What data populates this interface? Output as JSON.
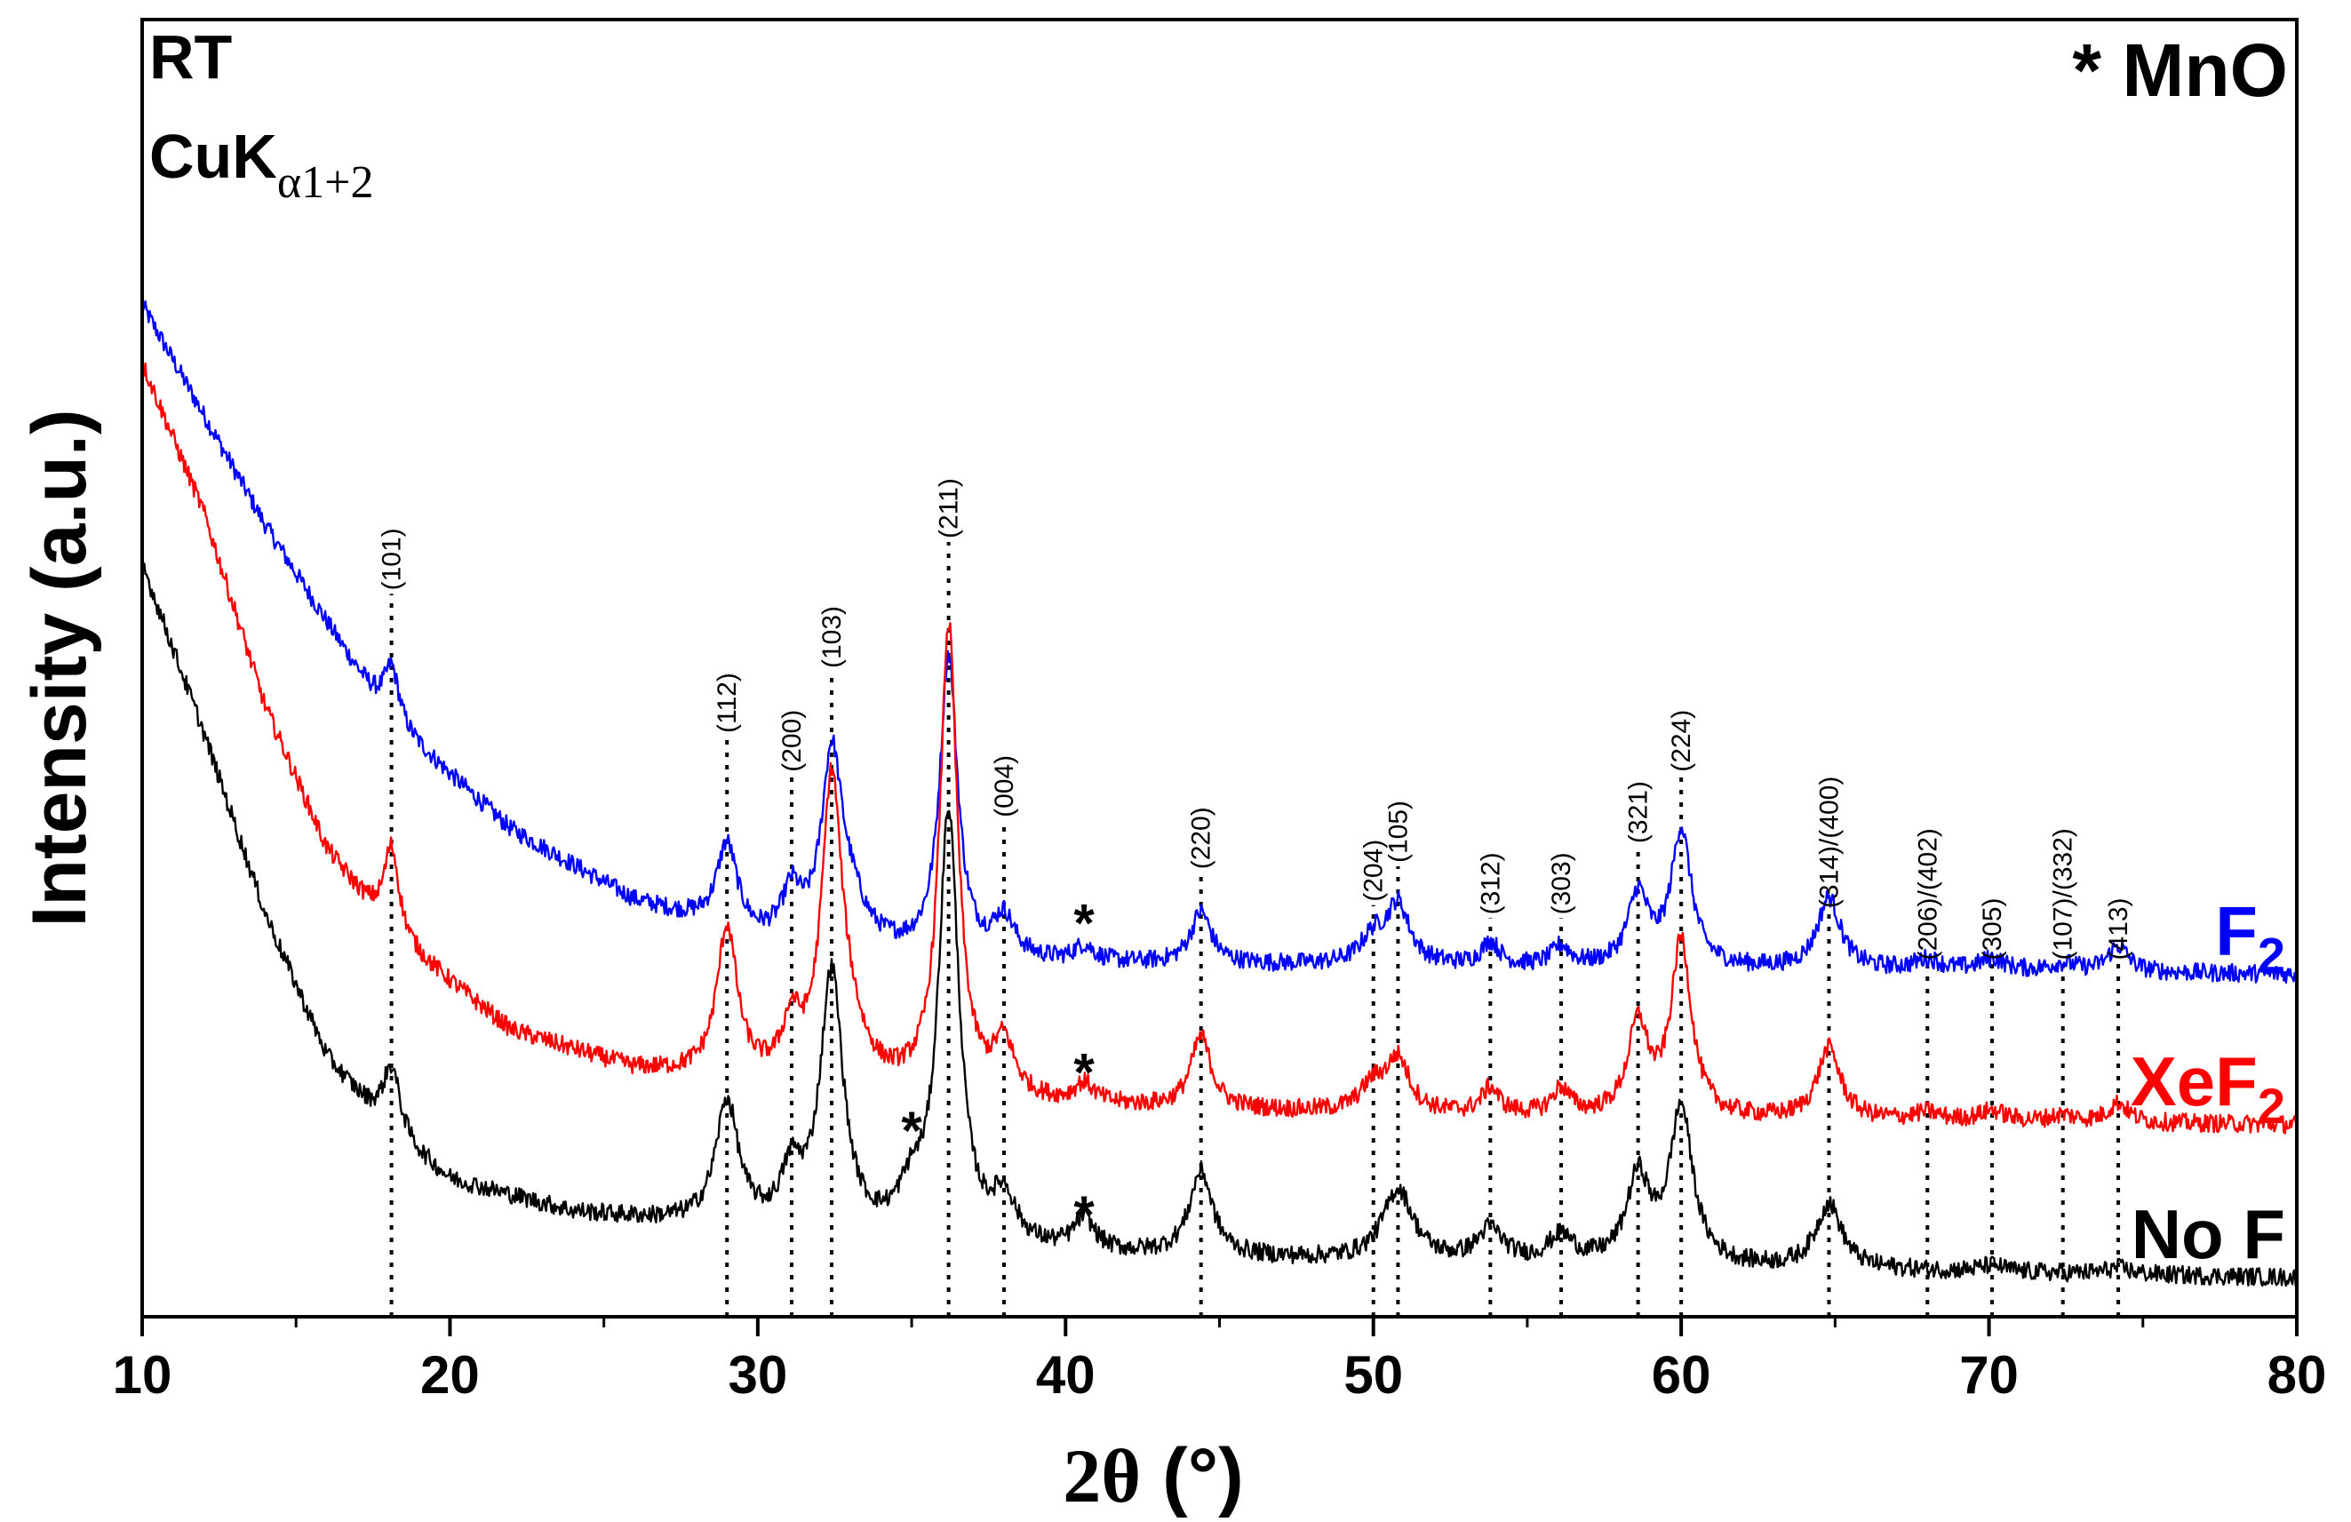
{
  "chart_data": {
    "type": "line",
    "title": "",
    "xlabel_main": "2θ",
    "xlabel_unit": "(°)",
    "ylabel": "Intensity (a.u.)",
    "xlim": [
      10,
      80
    ],
    "ylim": [
      0,
      100
    ],
    "x_ticks": [
      10,
      20,
      30,
      40,
      50,
      60,
      70,
      80
    ],
    "annotations": {
      "rt": "RT",
      "radiation": "CuK",
      "radiation_sub": "α1+2",
      "mno_legend": "* MnO"
    },
    "series": [
      {
        "name": "F",
        "name_sub": "2",
        "color": "#0000ff",
        "baseline": 27,
        "bg": [
          [
            10,
            78.0
          ],
          [
            14,
            61.0
          ],
          [
            18,
            46.0
          ],
          [
            22,
            37.5
          ],
          [
            26,
            32.0
          ],
          [
            30,
            29.0
          ],
          [
            35,
            27.8
          ],
          [
            40,
            27.2
          ],
          [
            50,
            27.0
          ],
          [
            60,
            26.8
          ],
          [
            70,
            26.6
          ],
          [
            80,
            26.4
          ]
        ],
        "peaks": [
          [
            18.1,
            4.5,
            0.3
          ],
          [
            29.0,
            6.5,
            0.4
          ],
          [
            31.1,
            3.5,
            0.35
          ],
          [
            32.4,
            14.0,
            0.4
          ],
          [
            33.0,
            3.0,
            0.6
          ],
          [
            36.2,
            23.0,
            0.35
          ],
          [
            38.0,
            3.0,
            0.4
          ],
          [
            40.6,
            1.2,
            0.4
          ],
          [
            44.4,
            4.0,
            0.4
          ],
          [
            50.0,
            2.0,
            0.5
          ],
          [
            50.8,
            4.5,
            0.45
          ],
          [
            53.8,
            1.8,
            0.35
          ],
          [
            56.1,
            1.5,
            0.35
          ],
          [
            58.6,
            5.5,
            0.4
          ],
          [
            60.0,
            10.5,
            0.4
          ],
          [
            64.8,
            5.5,
            0.45
          ],
          [
            68.0,
            0.8,
            0.5
          ],
          [
            70.1,
            0.9,
            0.5
          ],
          [
            72.4,
            0.6,
            0.5
          ],
          [
            74.2,
            2.0,
            0.4
          ]
        ]
      },
      {
        "name": "XeF",
        "name_sub": "2",
        "color": "#ff0000",
        "baseline": 14,
        "bg": [
          [
            10,
            73.5
          ],
          [
            12,
            62.0
          ],
          [
            14,
            47.0
          ],
          [
            16,
            36.0
          ],
          [
            18,
            29.5
          ],
          [
            22,
            22.0
          ],
          [
            26,
            19.0
          ],
          [
            30,
            18.0
          ],
          [
            40,
            16.2
          ],
          [
            50,
            15.6
          ],
          [
            60,
            15.2
          ],
          [
            70,
            15.0
          ],
          [
            80,
            14.8
          ]
        ],
        "peaks": [
          [
            18.1,
            7.0,
            0.3
          ],
          [
            29.0,
            11.5,
            0.4
          ],
          [
            31.1,
            4.0,
            0.35
          ],
          [
            32.4,
            22.5,
            0.4
          ],
          [
            33.0,
            3.0,
            0.6
          ],
          [
            36.2,
            36.0,
            0.35
          ],
          [
            38.0,
            4.0,
            0.4
          ],
          [
            40.6,
            1.5,
            0.4
          ],
          [
            44.4,
            5.5,
            0.4
          ],
          [
            50.0,
            2.0,
            0.5
          ],
          [
            50.8,
            4.0,
            0.45
          ],
          [
            53.8,
            2.0,
            0.35
          ],
          [
            56.1,
            2.0,
            0.35
          ],
          [
            58.6,
            7.0,
            0.4
          ],
          [
            60.0,
            13.5,
            0.4
          ],
          [
            64.8,
            5.5,
            0.45
          ],
          [
            68.0,
            0.6,
            0.5
          ],
          [
            70.1,
            0.8,
            0.5
          ],
          [
            72.4,
            0.5,
            0.5
          ],
          [
            74.2,
            1.5,
            0.4
          ]
        ]
      },
      {
        "name": "No F",
        "name_sub": "",
        "color": "#000000",
        "baseline": 2,
        "bg": [
          [
            10,
            58.0
          ],
          [
            12,
            45.0
          ],
          [
            14,
            31.0
          ],
          [
            16,
            20.0
          ],
          [
            18,
            14.0
          ],
          [
            20,
            10.5
          ],
          [
            24,
            8.0
          ],
          [
            28,
            7.0
          ],
          [
            35,
            5.5
          ],
          [
            40,
            4.8
          ],
          [
            50,
            4.2
          ],
          [
            60,
            3.8
          ],
          [
            70,
            3.4
          ],
          [
            80,
            3.0
          ]
        ],
        "peaks": [
          [
            18.1,
            5.5,
            0.35
          ],
          [
            29.0,
            9.5,
            0.45
          ],
          [
            31.1,
            4.0,
            0.4
          ],
          [
            32.4,
            20.0,
            0.45
          ],
          [
            35.0,
            3.0,
            0.5
          ],
          [
            36.2,
            33.0,
            0.4
          ],
          [
            38.0,
            3.5,
            0.45
          ],
          [
            40.6,
            2.5,
            0.4
          ],
          [
            44.4,
            6.5,
            0.45
          ],
          [
            50.8,
            5.5,
            0.6
          ],
          [
            53.8,
            2.5,
            0.5
          ],
          [
            56.1,
            2.0,
            0.5
          ],
          [
            58.6,
            6.5,
            0.45
          ],
          [
            60.0,
            12.0,
            0.45
          ],
          [
            64.8,
            5.0,
            0.5
          ],
          [
            70.1,
            0.5,
            0.5
          ],
          [
            74.2,
            0.5,
            0.5
          ]
        ]
      }
    ],
    "reflections": [
      {
        "label": "(101)",
        "x": 18.1,
        "label_y": 56.0
      },
      {
        "label": "(112)",
        "x": 29.0,
        "label_y": 45.0
      },
      {
        "label": "(200)",
        "x": 31.1,
        "label_y": 42.0
      },
      {
        "label": "(103)",
        "x": 32.4,
        "label_y": 50.0
      },
      {
        "label": "(211)",
        "x": 36.2,
        "label_y": 60.0
      },
      {
        "label": "(004)",
        "x": 38.0,
        "label_y": 38.5
      },
      {
        "label": "(220)",
        "x": 44.4,
        "label_y": 34.5
      },
      {
        "label": "(204)",
        "x": 50.0,
        "label_y": 32.0
      },
      {
        "label": "(105)",
        "x": 50.8,
        "label_y": 35.0
      },
      {
        "label": "(312)",
        "x": 53.8,
        "label_y": 31.0
      },
      {
        "label": "(303)",
        "x": 56.1,
        "label_y": 31.0
      },
      {
        "label": "(321)",
        "x": 58.6,
        "label_y": 36.5
      },
      {
        "label": "(224)",
        "x": 60.0,
        "label_y": 42.0
      },
      {
        "label": "(314)/(400)",
        "x": 64.8,
        "label_y": 31.5
      },
      {
        "label": "(206)/(402)",
        "x": 68.0,
        "label_y": 27.5
      },
      {
        "label": "(305)",
        "x": 70.1,
        "label_y": 27.5
      },
      {
        "label": "(107)/(332)",
        "x": 72.4,
        "label_y": 27.5
      },
      {
        "label": "(413)",
        "x": 74.2,
        "label_y": 27.5
      }
    ],
    "mno_markers": [
      {
        "label": "*",
        "x": 40.6,
        "y": 31.0
      },
      {
        "label": "*",
        "x": 40.6,
        "y": 19.5
      },
      {
        "label": "*",
        "x": 40.6,
        "y": 8.5
      },
      {
        "label": "*",
        "x": 35.0,
        "y": 15.0
      }
    ]
  }
}
